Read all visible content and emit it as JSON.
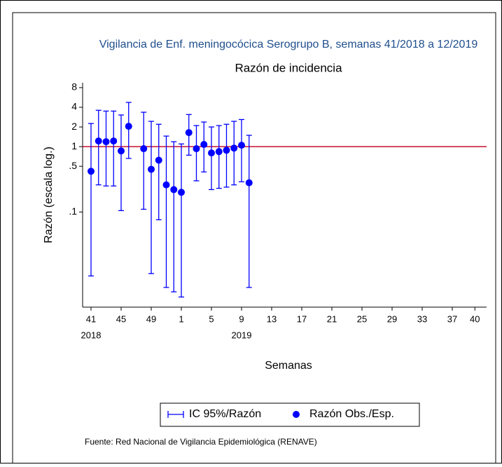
{
  "chart_data": {
    "type": "errorbar",
    "title": "Vigilancia de Enf. meningocócica Serogrupo B, semanas 41/2018 a 12/2019",
    "subtitle": "Razón de incidencia",
    "y_label": "Razón (escala log.)",
    "x_label": "Semanas",
    "source": "Fuente: Red Nacional de Vigilancia Epidemiológica (RENAVE)",
    "log_y": true,
    "categories": [
      "41",
      null,
      null,
      null,
      "45",
      null,
      null,
      null,
      "49",
      null,
      null,
      null,
      "1",
      null,
      null,
      null,
      "5",
      null,
      null,
      null,
      "9",
      null,
      null,
      null,
      "13",
      null,
      null,
      null,
      "17",
      null,
      null,
      null,
      "21",
      null,
      null,
      null,
      "25",
      null,
      null,
      null,
      "29",
      null,
      null,
      null,
      "33",
      null,
      null,
      null,
      "37",
      null,
      null,
      "40"
    ],
    "category_sublabels": [
      "2018",
      null,
      null,
      null,
      null,
      null,
      null,
      null,
      null,
      null,
      null,
      null,
      null,
      null,
      null,
      null,
      null,
      null,
      null,
      null,
      "2019",
      null,
      null,
      null,
      null,
      null,
      null,
      null,
      null,
      null,
      null,
      null,
      null,
      null,
      null,
      null,
      null,
      null,
      null,
      null,
      null,
      null,
      null,
      null,
      null,
      null,
      null,
      null,
      null,
      null,
      null,
      null
    ],
    "series": [
      {
        "name": "IC 95%/Razón",
        "color": "#0000ff",
        "lower": [
          0.0105,
          0.26,
          0.25,
          0.25,
          0.105,
          0.66,
          null,
          0.11,
          0.0114,
          0.076,
          0.007,
          0.006,
          0.005,
          0.74,
          0.3,
          0.41,
          0.22,
          0.23,
          0.24,
          0.26,
          0.29,
          0.007,
          null,
          null,
          null,
          null,
          null,
          null,
          null,
          null,
          null,
          null,
          null,
          null,
          null,
          null,
          null,
          null,
          null,
          null,
          null,
          null,
          null,
          null,
          null,
          null,
          null,
          null,
          null,
          null,
          null,
          null
        ],
        "upper": [
          2.26,
          3.6,
          3.5,
          3.5,
          3.05,
          4.75,
          null,
          3.36,
          2.44,
          2.2,
          1.45,
          1.19,
          1.1,
          3.1,
          2.1,
          2.38,
          2.0,
          2.1,
          2.2,
          2.44,
          2.6,
          1.49,
          null,
          null,
          null,
          null,
          null,
          null,
          null,
          null,
          null,
          null,
          null,
          null,
          null,
          null,
          null,
          null,
          null,
          null,
          null,
          null,
          null,
          null,
          null,
          null,
          null,
          null,
          null,
          null,
          null,
          null
        ]
      },
      {
        "name": "Razón Obs./Esp.",
        "color": "#0000ff",
        "values": [
          0.42,
          1.22,
          1.19,
          1.22,
          0.86,
          2.05,
          null,
          0.93,
          0.45,
          0.62,
          0.26,
          0.22,
          0.2,
          1.64,
          0.93,
          1.08,
          0.8,
          0.84,
          0.88,
          0.95,
          1.05,
          0.28,
          null,
          null,
          null,
          null,
          null,
          null,
          null,
          null,
          null,
          null,
          null,
          null,
          null,
          null,
          null,
          null,
          null,
          null,
          null,
          null,
          null,
          null,
          null,
          null,
          null,
          null,
          null,
          null,
          null,
          null
        ]
      }
    ],
    "reference_line": {
      "value": 1,
      "color": "#c8102e"
    },
    "ylim": [
      0.0035,
      9.5
    ],
    "yticks": [
      8,
      4,
      2,
      1,
      {
        "value": 0.5,
        "label": ".5"
      },
      {
        "value": 0.1,
        "label": ".1"
      }
    ],
    "title_color": "#1f4e8c"
  }
}
